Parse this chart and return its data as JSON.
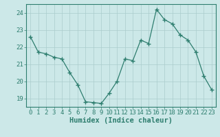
{
  "x": [
    0,
    1,
    2,
    3,
    4,
    5,
    6,
    7,
    8,
    9,
    10,
    11,
    12,
    13,
    14,
    15,
    16,
    17,
    18,
    19,
    20,
    21,
    22,
    23
  ],
  "y": [
    22.6,
    21.7,
    21.6,
    21.4,
    21.3,
    20.5,
    19.8,
    18.8,
    18.75,
    18.7,
    19.3,
    20.0,
    21.3,
    21.2,
    22.4,
    22.2,
    24.2,
    23.6,
    23.35,
    22.7,
    22.4,
    21.7,
    20.3,
    19.5
  ],
  "line_color": "#2d7d6e",
  "marker": "+",
  "marker_size": 4,
  "bg_color": "#cce8e8",
  "grid_color": "#aacccc",
  "axis_color": "#2d7d6e",
  "xlabel": "Humidex (Indice chaleur)",
  "ylim": [
    18.5,
    24.5
  ],
  "xlim": [
    -0.5,
    23.5
  ],
  "yticks": [
    19,
    20,
    21,
    22,
    23,
    24
  ],
  "xticks": [
    0,
    1,
    2,
    3,
    4,
    5,
    6,
    7,
    8,
    9,
    10,
    11,
    12,
    13,
    14,
    15,
    16,
    17,
    18,
    19,
    20,
    21,
    22,
    23
  ],
  "xlabel_fontsize": 7.5,
  "tick_fontsize": 6.5
}
